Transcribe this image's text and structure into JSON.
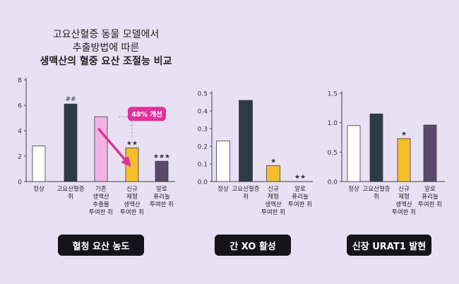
{
  "title": {
    "line1": "고요산혈증 동물 모델에서",
    "line2": "추출방법에 따른",
    "line3": "생맥산의 혈중 요산 조절능 비교"
  },
  "annotation": "48% 개선",
  "colors": {
    "background": "#e8e1f3",
    "normal": "#ffffff",
    "hyperuricemia": "#2d3a48",
    "conventional": "#f2b3e2",
    "new_formulation": "#f6be2a",
    "allopurinol": "#5a4a6a",
    "arrow": "#e0329a"
  },
  "chart_data": [
    {
      "type": "bar",
      "caption": "혈청 요산 농도",
      "categories": [
        "정상",
        "고요산혈증 쥐",
        "기존 생맥산 추출물 투여한 쥐",
        "신규 제형 생맥산 투여한 쥐",
        "알로 퓨리놀 투여한 쥐"
      ],
      "category_lines": [
        [
          "정상"
        ],
        [
          "고요산혈증",
          "쥐"
        ],
        [
          "기존",
          "생맥산",
          "추출물",
          "투여한 쥐"
        ],
        [
          "신규",
          "제형",
          "생맥산",
          "투여한 쥐"
        ],
        [
          "알로",
          "퓨리놀",
          "투여한 쥐"
        ]
      ],
      "values": [
        2.8,
        6.1,
        5.1,
        2.65,
        1.6
      ],
      "marks": [
        "",
        "##",
        "",
        "★★",
        "★★★"
      ],
      "ylim": [
        0,
        8
      ],
      "yticks": [
        0,
        2,
        4,
        6,
        8
      ]
    },
    {
      "type": "bar",
      "caption": "간 XO 활성",
      "categories": [
        "정상",
        "고요산혈증 쥐",
        "신규 제형 생맥산 투여한 쥐",
        "알로 퓨리놀 투여한 쥐"
      ],
      "category_lines": [
        [
          "정상"
        ],
        [
          "고요산혈증",
          "쥐"
        ],
        [
          "신규",
          "제형",
          "생맥산",
          "투여한 쥐"
        ],
        [
          "알로",
          "퓨리놀",
          "투여한 쥐"
        ]
      ],
      "values": [
        0.23,
        0.46,
        0.09,
        0.0
      ],
      "marks": [
        "",
        "",
        "★",
        "★★"
      ],
      "ylim": [
        0,
        0.5
      ],
      "yticks": [
        0,
        0.1,
        0.2,
        0.3,
        0.4,
        0.5
      ]
    },
    {
      "type": "bar",
      "caption": "신장 URAT1 발현",
      "categories": [
        "정상",
        "고요산혈증 쥐",
        "신규 제형 생맥산 투여한 쥐",
        "알로 퓨리놀 투여한 쥐"
      ],
      "category_lines": [
        [
          "정상"
        ],
        [
          "고요산혈증",
          "쥐"
        ],
        [
          "신규",
          "제형",
          "생맥산",
          "투여한 쥐"
        ],
        [
          "알로",
          "퓨리놀",
          "투여한 쥐"
        ]
      ],
      "values": [
        0.95,
        1.15,
        0.73,
        0.96
      ],
      "marks": [
        "",
        "",
        "★",
        ""
      ],
      "ylim": [
        0,
        1.5
      ],
      "yticks": [
        0,
        0.5,
        1.0,
        1.5
      ]
    }
  ]
}
